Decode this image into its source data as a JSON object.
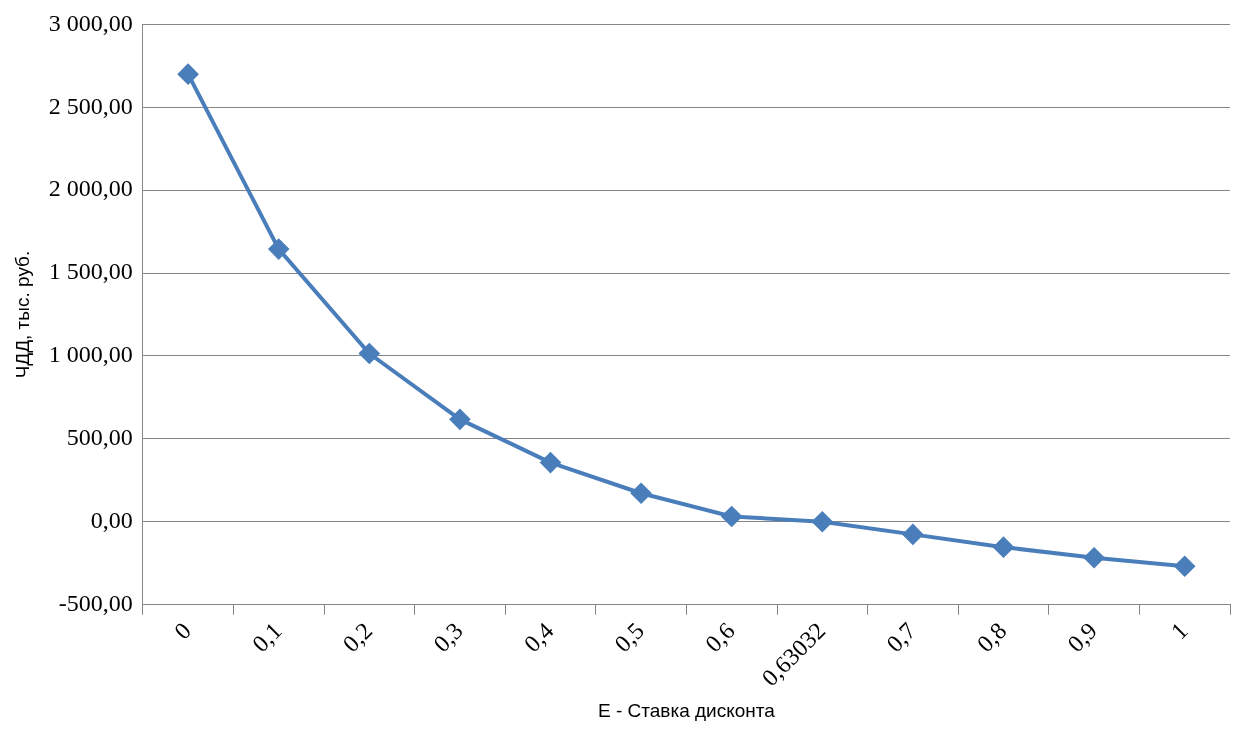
{
  "chart_data": {
    "type": "line",
    "xlabel": "Е - Ставка дисконта",
    "ylabel": "ЧДД, тыс. руб.",
    "categories": [
      "0",
      "0,1",
      "0,2",
      "0,3",
      "0,4",
      "0,5",
      "0,6",
      "0,63032",
      "0,7",
      "0,8",
      "0,9",
      "1"
    ],
    "series": [
      {
        "color": "#4a7ebb",
        "values": [
          2700,
          1645,
          1015,
          618,
          357,
          172,
          32,
          0,
          -76,
          -153,
          -217,
          -268
        ]
      }
    ],
    "ylim": [
      -500,
      3000
    ],
    "yticks": [
      {
        "value": -500,
        "label": "-500,00"
      },
      {
        "value": 0,
        "label": "0,00"
      },
      {
        "value": 500,
        "label": "500,00"
      },
      {
        "value": 1000,
        "label": "1 000,00"
      },
      {
        "value": 1500,
        "label": "1 500,00"
      },
      {
        "value": 2000,
        "label": "2 000,00"
      },
      {
        "value": 2500,
        "label": "2 500,00"
      },
      {
        "value": 3000,
        "label": "3 000,00"
      }
    ],
    "grid": "y",
    "marker": "diamond",
    "line_style": "solid",
    "legend": false
  }
}
